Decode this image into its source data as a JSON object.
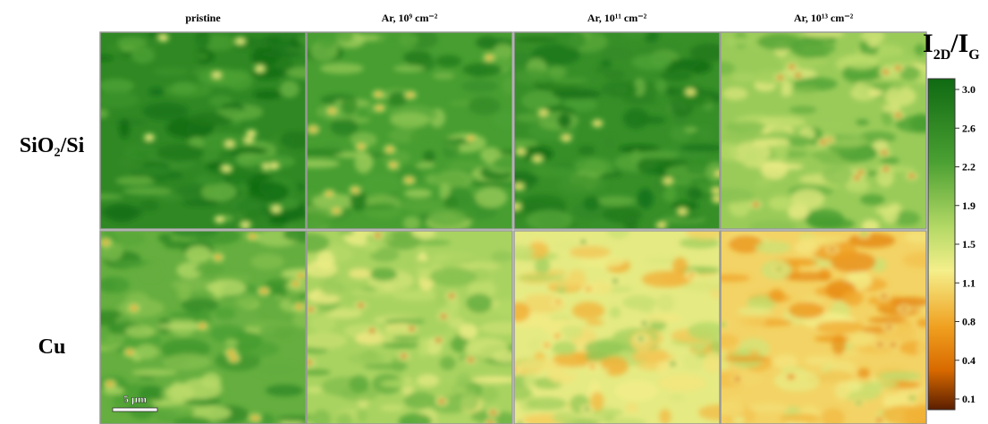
{
  "figure": {
    "columns": [
      "pristine",
      "Ar, 10⁹ cm⁻²",
      "Ar, 10¹¹ cm⁻²",
      "Ar, 10¹³ cm⁻²"
    ],
    "rows": [
      "SiO₂/Si",
      "Cu"
    ],
    "colorbar": {
      "title": "I",
      "title_sub": "2D",
      "title2": "/I",
      "title2_sub": "G",
      "ticks": [
        "3.0",
        "2.6",
        "2.2",
        "1.9",
        "1.5",
        "1.1",
        "0.8",
        "0.4",
        "0.1"
      ]
    },
    "scale_bar": "5 µm"
  }
}
